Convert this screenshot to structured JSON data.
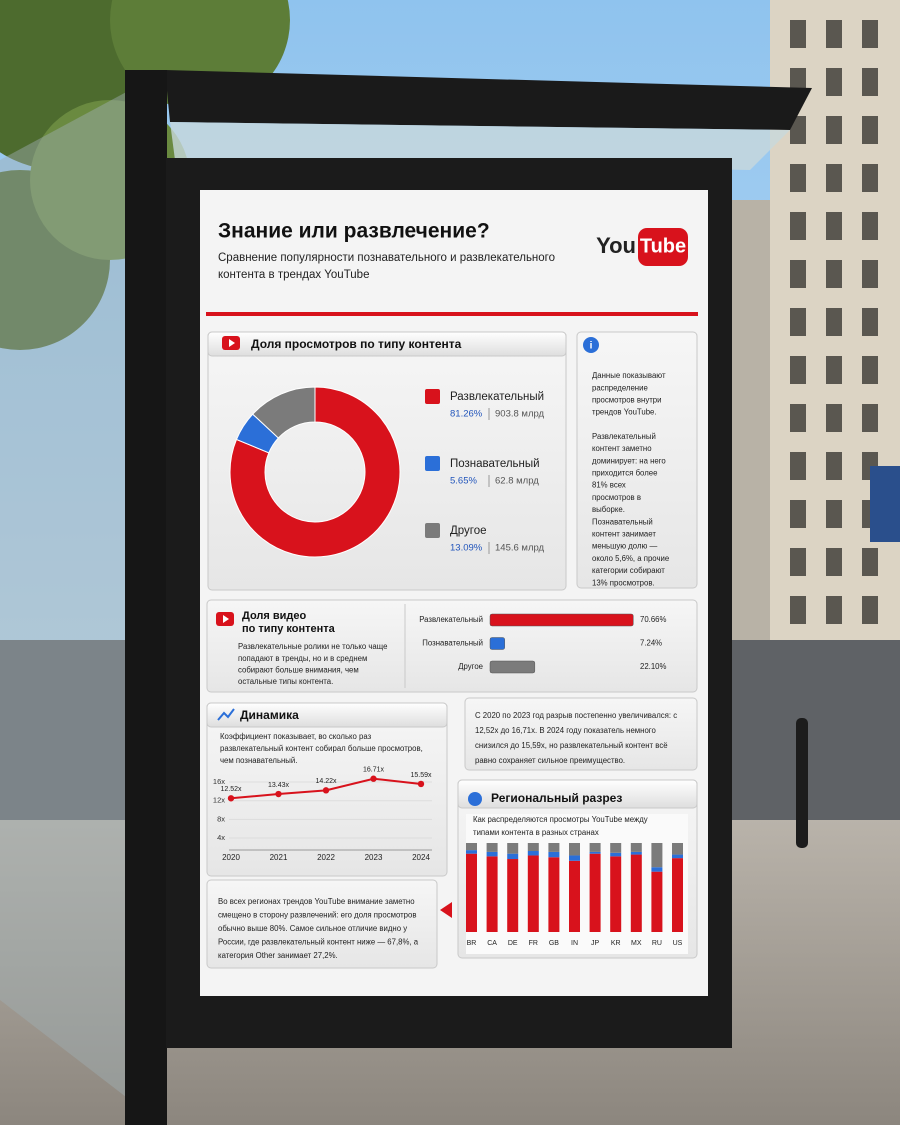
{
  "poster": {
    "title": "Знание или развлечение?",
    "subtitle": [
      "Сравнение популярности познавательного и развлекательного",
      "контента в трендах YouTube"
    ],
    "logo": [
      "You",
      "Tube"
    ],
    "info": [
      [
        "Данные показывают",
        "распределение",
        "просмотров внутри",
        "трендов YouTube."
      ],
      [
        "Развлекательный",
        "контент заметно",
        "доминирует: на него",
        "приходится более",
        "81% всех",
        "просмотров в",
        "выборке.",
        "Познавательный",
        "контент занимает",
        "меньшую долю —",
        "около 5,6%, а прочие",
        "категории собирают",
        "13% просмотров."
      ]
    ],
    "trend_comment": [
      "С 2020 по 2023 год разрыв постепенно увеличивался: с",
      "12,52x до 16,71x. В 2024 году показатель немного",
      "снизился до 15,59x, но развлекательный контент всё",
      "равно сохраняет сильное преимущество."
    ],
    "regional_note": [
      "Во всех регионах трендов YouTube внимание заметно",
      "смещено в сторону развлечений: его доля просмотров",
      "обычно выше 80%. Самое сильное отличие видно у",
      "России, где развлекательный контент ниже — 67,8%, а",
      "категория Other занимает 27,2%."
    ]
  },
  "chart_data": [
    {
      "type": "pie",
      "donut": true,
      "title": "Доля просмотров по типу контента",
      "categories": [
        "Развлекательный",
        "Познавательный",
        "Другое"
      ],
      "values": [
        81.26,
        5.65,
        13.09
      ],
      "value_labels": [
        "81.26%",
        "5.65%",
        "13.09%"
      ],
      "views_labels": [
        "903.8 млрд",
        "62.8 млрд",
        "145.6 млрд"
      ],
      "colors": [
        "#d8121c",
        "#2b6fd8",
        "#7b7b7b"
      ]
    },
    {
      "type": "bar",
      "orientation": "horizontal",
      "title": [
        "Доля видео",
        "по типу контента"
      ],
      "note": [
        "Развлекательные ролики не только чаще",
        "попадают в тренды, но и в среднем",
        "собирают больше внимания, чем",
        "остальные типы контента."
      ],
      "categories": [
        "Развлекательный",
        "Познавательный",
        "Другое"
      ],
      "values": [
        70.66,
        7.24,
        22.1
      ],
      "value_labels": [
        "70.66%",
        "7.24%",
        "22.10%"
      ],
      "colors": [
        "#d8121c",
        "#2b6fd8",
        "#7b7b7b"
      ],
      "xlim": [
        0,
        72
      ]
    },
    {
      "type": "line",
      "title": "Динамика",
      "note": [
        "Коэффициент показывает, во сколько раз",
        "развлекательный контент собирал больше просмотров,",
        "чем познавательный."
      ],
      "categories": [
        "2020",
        "2021",
        "2022",
        "2023",
        "2024"
      ],
      "values": [
        12.52,
        13.43,
        14.22,
        16.71,
        15.59
      ],
      "value_labels": [
        "12.52x",
        "13.43x",
        "14.22x",
        "16.71x",
        "15.59x"
      ],
      "color": "#d8121c",
      "ylim": [
        0,
        18
      ],
      "yticks": [
        {
          "value": 4,
          "label": "4x"
        },
        {
          "value": 8,
          "label": "8x"
        },
        {
          "value": 12,
          "label": "12x"
        },
        {
          "value": 16,
          "label": "16x"
        }
      ],
      "grid": true
    },
    {
      "type": "stacked_bar",
      "title": "Региональный разрез",
      "subtitle": [
        "Как распределяются просмотры YouTube между",
        "типами контента в разных странах"
      ],
      "categories": [
        "BR",
        "CA",
        "DE",
        "FR",
        "GB",
        "IN",
        "JP",
        "KR",
        "MX",
        "RU",
        "US"
      ],
      "series": [
        {
          "color": "#d8121c",
          "values": [
            88,
            85,
            82,
            86,
            84,
            80,
            88,
            85,
            87,
            67.8,
            83
          ]
        },
        {
          "color": "#2b6fd8",
          "values": [
            4,
            5,
            6,
            5,
            6,
            6,
            2,
            4,
            3,
            5,
            4
          ]
        },
        {
          "color": "#7b7b7b",
          "values": [
            8,
            10,
            12,
            9,
            10,
            14,
            10,
            11,
            10,
            27.2,
            13
          ]
        }
      ],
      "ylim": [
        0,
        100
      ]
    }
  ]
}
